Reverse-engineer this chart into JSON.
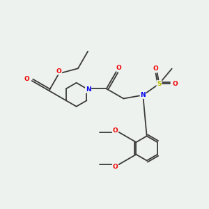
{
  "bg_color": "#eef2ee",
  "bond_color": "#3a3a3a",
  "atom_colors": {
    "N": "#0000ee",
    "O": "#ee0000",
    "S": "#bbbb00",
    "C": "#3a3a3a"
  },
  "font_size_label": 6.5,
  "fig_size": [
    3.0,
    3.0
  ],
  "dpi": 100
}
